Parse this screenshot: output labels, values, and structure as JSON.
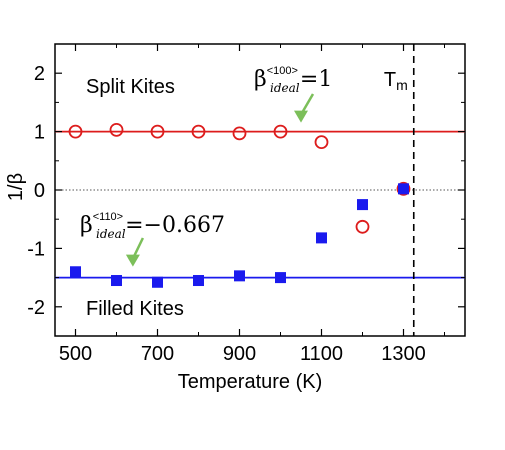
{
  "chart_data": {
    "type": "scatter",
    "xlabel": "Temperature (K)",
    "ylabel": "1/β",
    "xlim": [
      450,
      1450
    ],
    "ylim": [
      -2.5,
      2.5
    ],
    "xticks": [
      500,
      700,
      900,
      1100,
      1300
    ],
    "yticks": [
      -2,
      -1,
      0,
      1,
      2
    ],
    "ytick_labels": [
      "-2",
      "-1",
      "0",
      "1",
      "2"
    ],
    "grid": false,
    "series": [
      {
        "name": "Split Kites",
        "marker": "open-circle",
        "color": "#dd1c1c",
        "x": [
          500,
          600,
          700,
          800,
          900,
          1000,
          1100,
          1200,
          1300
        ],
        "y": [
          1.0,
          1.03,
          1.0,
          1.0,
          0.97,
          1.0,
          0.82,
          -0.63,
          0.02
        ]
      },
      {
        "name": "Filled Kites",
        "marker": "filled-square",
        "color": "#1a1aee",
        "x": [
          500,
          600,
          700,
          800,
          900,
          1000,
          1100,
          1200,
          1300
        ],
        "y": [
          -1.4,
          -1.55,
          -1.58,
          -1.55,
          -1.47,
          -1.5,
          -0.82,
          -0.25,
          0.02
        ]
      }
    ],
    "reference_lines": [
      {
        "y": 1.0,
        "color": "#dd1c1c",
        "style": "solid"
      },
      {
        "y": -1.5,
        "color": "#1a1aee",
        "style": "solid"
      },
      {
        "y": 0,
        "color": "#555555",
        "style": "dotted"
      }
    ],
    "vertical_line": {
      "x": 1325,
      "style": "dashed",
      "color": "#000000",
      "label": "T",
      "label_sub": "m"
    },
    "annotations": {
      "ideal_100": {
        "base": "β",
        "superscript": "<100>",
        "subscript": "ideal",
        "rest": "=1",
        "arrow_to": {
          "x": 1050,
          "y": 1.05
        }
      },
      "ideal_110": {
        "base": "β",
        "superscript": "<110>",
        "subscript": "ideal",
        "rest": "=−0.667",
        "arrow_to": {
          "x": 640,
          "y": -1.45
        }
      }
    },
    "arrow_color": "#7cbf5a"
  }
}
